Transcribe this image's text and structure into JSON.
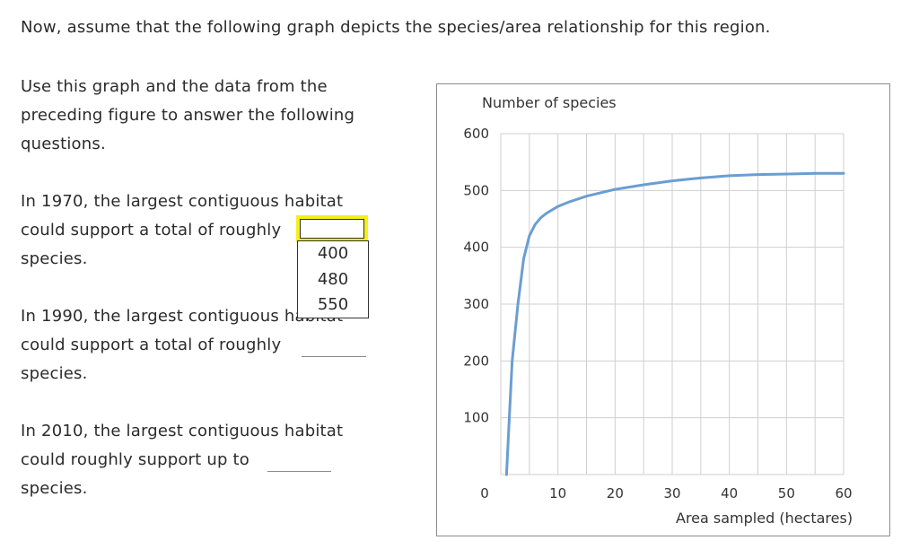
{
  "intro": "Now, assume that the following graph depicts the species/area relationship for this region.",
  "instructions": {
    "line1": "Use this graph and the data from the",
    "line2": "preceding figure to answer the following",
    "line3": "questions."
  },
  "q1": {
    "line1": "In 1970, the largest contiguous habitat",
    "line2": "could support a total of roughly",
    "line3": "species.",
    "selected_value": "",
    "options": [
      "400",
      "480",
      "550"
    ]
  },
  "q2": {
    "line1": "In 1990, the largest contiguous habitat",
    "line2": "could support a total of roughly",
    "line3": "species."
  },
  "q3": {
    "line1": "In 2010, the largest contiguous habitat",
    "line2": "could roughly support up to",
    "line3": "species."
  },
  "colors": {
    "curve": "#6a9ed1",
    "grid": "#cfcfcf",
    "focus_highlight": "#f5ef1a"
  },
  "chart_data": {
    "type": "line",
    "ylabel": "Number of species",
    "xlabel": "Area sampled (hectares)",
    "xlim": [
      0,
      60
    ],
    "ylim": [
      0,
      600
    ],
    "x_ticks": [
      "0",
      "10",
      "20",
      "30",
      "40",
      "50",
      "60"
    ],
    "y_ticks": [
      "100",
      "200",
      "300",
      "400",
      "500",
      "600"
    ],
    "grid": true,
    "series": [
      {
        "x": [
          1,
          1.5,
          2,
          3,
          4,
          5,
          6,
          7,
          8,
          10,
          12,
          15,
          20,
          25,
          30,
          35,
          40,
          45,
          50,
          55,
          60
        ],
        "values": [
          0,
          100,
          200,
          300,
          380,
          420,
          440,
          452,
          460,
          472,
          480,
          490,
          502,
          510,
          517,
          522,
          526,
          528,
          529,
          530,
          530
        ]
      }
    ]
  }
}
